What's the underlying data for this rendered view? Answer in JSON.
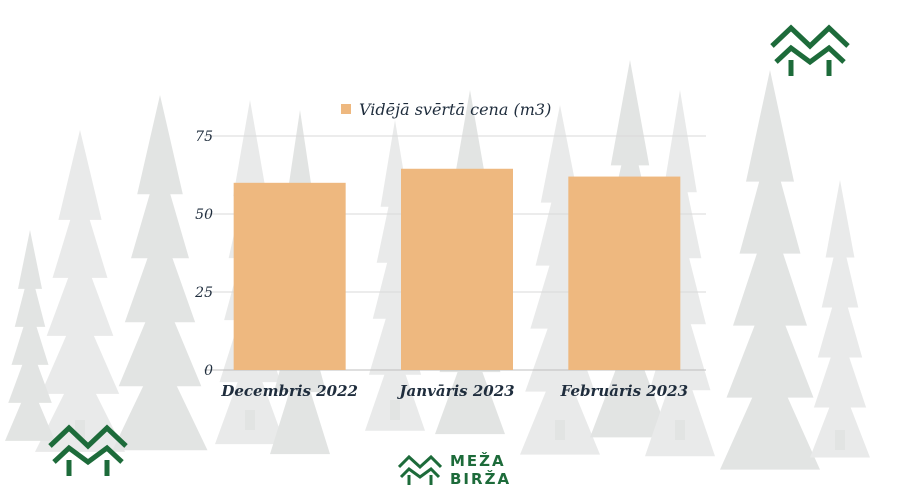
{
  "chart_data": {
    "type": "bar",
    "categories": [
      "Decembris 2022",
      "Janvāris 2023",
      "Februāris 2023"
    ],
    "series": [
      {
        "name": "Vidējā svērtā cena (m3)",
        "values": [
          60,
          64.5,
          62
        ]
      }
    ],
    "ylim": [
      0,
      75
    ],
    "yticks": [
      "0",
      "25",
      "50",
      "75"
    ],
    "legend": "top-center",
    "grid": true,
    "colors": {
      "bar": "#eeb87f",
      "grid": "#d9d9d9",
      "text": "#1f2d3d",
      "brand": "#1d6b3a"
    }
  },
  "brand": {
    "line1": "MEŽA",
    "line2": "BIRŽA"
  }
}
